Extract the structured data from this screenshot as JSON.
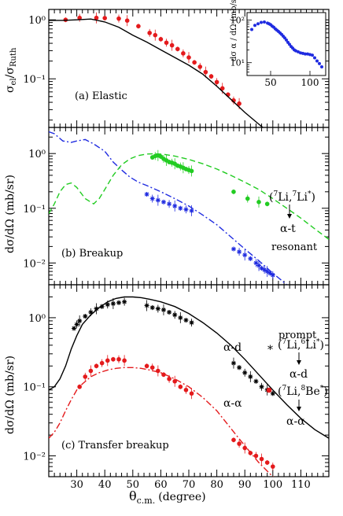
{
  "x_axis": {
    "label": "θ",
    "label_sub": "c.m.",
    "label_unit": "(degree)",
    "ticks": [
      "30",
      "40",
      "50",
      "60",
      "70",
      "80",
      "90",
      "100",
      "110"
    ],
    "range": [
      20,
      120
    ]
  },
  "chart_data": [
    {
      "type": "scatter",
      "label": "(a) Elastic",
      "ylabel": "σ",
      "ylabel_sub_num": "el",
      "ylabel_sub_den": "Ruth",
      "yscale": "log",
      "ylim": [
        0.015,
        1.5
      ],
      "yticks": [
        "10⁰",
        "10⁻¹"
      ],
      "series": [
        {
          "color": "#e41a1c",
          "marker": "circle",
          "x": [
            26,
            31,
            37,
            40,
            45,
            48,
            52,
            56,
            58,
            60,
            62,
            64,
            66,
            68,
            70,
            72,
            74,
            76,
            78,
            80,
            82,
            84,
            86,
            88
          ],
          "y": [
            1.0,
            1.08,
            1.08,
            1.07,
            1.05,
            0.97,
            0.78,
            0.6,
            0.55,
            0.47,
            0.41,
            0.37,
            0.32,
            0.27,
            0.23,
            0.19,
            0.16,
            0.13,
            0.11,
            0.088,
            0.069,
            0.054,
            0.043,
            0.038
          ]
        },
        {
          "color": "#000000",
          "line": "solid",
          "x": [
            20,
            25,
            30,
            35,
            40,
            45,
            50,
            55,
            60,
            65,
            70,
            75,
            80,
            85,
            90,
            95,
            98
          ],
          "y": [
            0.98,
            0.98,
            1.0,
            1.03,
            0.92,
            0.75,
            0.55,
            0.42,
            0.31,
            0.23,
            0.17,
            0.12,
            0.075,
            0.045,
            0.027,
            0.017,
            0.013
          ]
        }
      ],
      "inset": {
        "ylabel": "dσ α / dΩ (mb/sr)",
        "yscale": "log",
        "ylim": [
          5,
          150
        ],
        "yticks": [
          "10²",
          "10¹"
        ],
        "xlim": [
          20,
          120
        ],
        "xticks": [
          "50",
          "100"
        ],
        "series": [
          {
            "color": "#1f2be0",
            "marker": "circle",
            "x": [
              26,
              30,
              34,
              38,
              42,
              46,
              48,
              50,
              52,
              54,
              56,
              58,
              60,
              62,
              64,
              66,
              68,
              70,
              72,
              74,
              76,
              78,
              80,
              82,
              85,
              88,
              91,
              94,
              97,
              100,
              103,
              106,
              109,
              112,
              115
            ],
            "y": [
              60,
              75,
              82,
              88,
              90,
              85,
              82,
              78,
              72,
              68,
              62,
              58,
              54,
              50,
              46,
              42,
              38,
              34,
              30,
              27,
              24,
              22,
              20,
              19,
              18,
              17,
              16.5,
              16,
              16,
              15.5,
              15,
              13,
              11,
              9.5,
              8
            ]
          }
        ]
      }
    },
    {
      "type": "scatter",
      "label": "(b) Breakup",
      "ylabel": "dσ/dΩ (mb/sr)",
      "yscale": "log",
      "ylim": [
        0.004,
        3
      ],
      "yticks": [
        "10⁰",
        "10⁻¹",
        "10⁻²"
      ],
      "annotations": {
        "reaction_pre": "(",
        "reaction_sup1": "7",
        "reaction_mid": "Li,",
        "reaction_sup2": "7",
        "reaction_post": "Li",
        "reaction_star": "*",
        "reaction_close": ")",
        "channel": "α-t",
        "resonant": "resonant",
        "prompt": "prompt"
      },
      "series": [
        {
          "color": "#22cc22",
          "marker": "circle",
          "x": [
            57,
            58,
            59,
            60,
            61,
            62,
            63,
            64,
            65,
            66,
            67,
            68,
            69,
            70,
            71,
            86,
            91,
            95,
            98
          ],
          "y": [
            0.85,
            0.9,
            0.92,
            0.88,
            0.8,
            0.75,
            0.7,
            0.68,
            0.65,
            0.6,
            0.58,
            0.55,
            0.52,
            0.5,
            0.48,
            0.2,
            0.15,
            0.13,
            0.12
          ]
        },
        {
          "color": "#1f2be0",
          "marker": "star",
          "x": [
            55,
            57,
            59,
            61,
            63,
            65,
            67,
            69,
            71,
            86,
            88,
            90,
            92,
            94,
            95,
            96,
            97,
            98,
            99,
            100
          ],
          "y": [
            0.18,
            0.15,
            0.14,
            0.13,
            0.12,
            0.11,
            0.1,
            0.095,
            0.09,
            0.018,
            0.016,
            0.014,
            0.012,
            0.01,
            0.009,
            0.008,
            0.0075,
            0.007,
            0.0065,
            0.006
          ]
        },
        {
          "color": "#1f2be0",
          "line": "dashdot",
          "x": [
            20,
            22,
            25,
            28,
            30,
            33,
            36,
            40,
            43,
            46,
            49,
            52,
            55,
            60,
            65,
            70,
            75,
            80,
            85,
            90,
            95,
            100,
            105
          ],
          "y": [
            2.5,
            2.3,
            1.7,
            1.6,
            1.7,
            1.8,
            1.5,
            1.1,
            0.7,
            0.5,
            0.37,
            0.3,
            0.26,
            0.2,
            0.15,
            0.11,
            0.075,
            0.05,
            0.03,
            0.018,
            0.011,
            0.0065,
            0.004
          ]
        },
        {
          "color": "#22cc22",
          "line": "dashed",
          "x": [
            20,
            22,
            24,
            26,
            28,
            30,
            33,
            36,
            38,
            40,
            43,
            46,
            49,
            52,
            55,
            58,
            61,
            65,
            70,
            75,
            80,
            85,
            90,
            95,
            100,
            105,
            110,
            115,
            120
          ],
          "y": [
            0.08,
            0.12,
            0.2,
            0.27,
            0.29,
            0.24,
            0.15,
            0.12,
            0.15,
            0.22,
            0.4,
            0.62,
            0.8,
            0.92,
            0.98,
            0.99,
            0.97,
            0.9,
            0.78,
            0.65,
            0.52,
            0.4,
            0.3,
            0.22,
            0.15,
            0.1,
            0.066,
            0.042,
            0.027
          ]
        }
      ]
    },
    {
      "type": "scatter",
      "label": "(c) Transfer breakup",
      "ylabel": "dσ/dΩ (mb/sr)",
      "yscale": "log",
      "ylim": [
        0.005,
        3
      ],
      "yticks": [
        "10⁰",
        "10⁻¹",
        "10⁻²"
      ],
      "annotations": {
        "legend1_pre": "(",
        "legend1_sup1": "7",
        "legend1_mid": "Li,",
        "legend1_sup2": "6",
        "legend1_post": "Li",
        "legend1_star": "*",
        "legend1_close": ")",
        "legend1_channel": "α-d",
        "legend2_pre": "(",
        "legend2_sup1": "7",
        "legend2_mid": "Li,",
        "legend2_sup2": "8",
        "legend2_post": "Be",
        "legend2_star": "*",
        "legend2_close": ")",
        "legend2_channel": "α-α",
        "curve1": "α-d",
        "curve2": "α-α"
      },
      "series": [
        {
          "color": "#000000",
          "marker": "star",
          "x": [
            29,
            30,
            31,
            33,
            35,
            37,
            39,
            41,
            43,
            45,
            47,
            55,
            57,
            59,
            61,
            63,
            65,
            67,
            69,
            71,
            86,
            88,
            90,
            92,
            94,
            96,
            98,
            100
          ],
          "y": [
            0.7,
            0.8,
            0.9,
            1.05,
            1.2,
            1.35,
            1.45,
            1.55,
            1.6,
            1.65,
            1.7,
            1.5,
            1.4,
            1.35,
            1.3,
            1.2,
            1.1,
            1.0,
            0.92,
            0.85,
            0.22,
            0.19,
            0.16,
            0.14,
            0.12,
            0.1,
            0.09,
            0.08
          ]
        },
        {
          "color": "#e41a1c",
          "marker": "circle",
          "x": [
            31,
            33,
            35,
            37,
            39,
            41,
            43,
            45,
            47,
            55,
            57,
            59,
            61,
            63,
            65,
            67,
            69,
            71,
            86,
            88,
            90,
            92,
            94,
            96,
            98,
            100
          ],
          "y": [
            0.1,
            0.14,
            0.17,
            0.2,
            0.22,
            0.24,
            0.25,
            0.25,
            0.24,
            0.2,
            0.19,
            0.17,
            0.15,
            0.13,
            0.12,
            0.1,
            0.09,
            0.08,
            0.017,
            0.015,
            0.013,
            0.011,
            0.01,
            0.009,
            0.008,
            0.007
          ]
        },
        {
          "color": "#000000",
          "line": "solid",
          "x": [
            20,
            22,
            24,
            26,
            28,
            30,
            32,
            35,
            38,
            41,
            44,
            47,
            50,
            53,
            56,
            60,
            65,
            70,
            75,
            80,
            85,
            90,
            95,
            100,
            105,
            110,
            115,
            120
          ],
          "y": [
            0.09,
            0.1,
            0.13,
            0.2,
            0.35,
            0.55,
            0.8,
            1.1,
            1.4,
            1.7,
            1.9,
            2.0,
            2.0,
            1.95,
            1.85,
            1.7,
            1.45,
            1.15,
            0.85,
            0.6,
            0.4,
            0.25,
            0.15,
            0.09,
            0.055,
            0.035,
            0.024,
            0.018
          ]
        },
        {
          "color": "#e41a1c",
          "line": "dashdot",
          "x": [
            20,
            22,
            24,
            26,
            28,
            30,
            32,
            35,
            38,
            41,
            44,
            47,
            50,
            53,
            56,
            60,
            65,
            70,
            75,
            80,
            85,
            90,
            95,
            100,
            102
          ],
          "y": [
            0.018,
            0.022,
            0.03,
            0.045,
            0.065,
            0.09,
            0.11,
            0.14,
            0.16,
            0.175,
            0.185,
            0.19,
            0.19,
            0.185,
            0.175,
            0.16,
            0.13,
            0.1,
            0.07,
            0.045,
            0.025,
            0.014,
            0.008,
            0.005,
            0.0045
          ]
        }
      ]
    }
  ]
}
